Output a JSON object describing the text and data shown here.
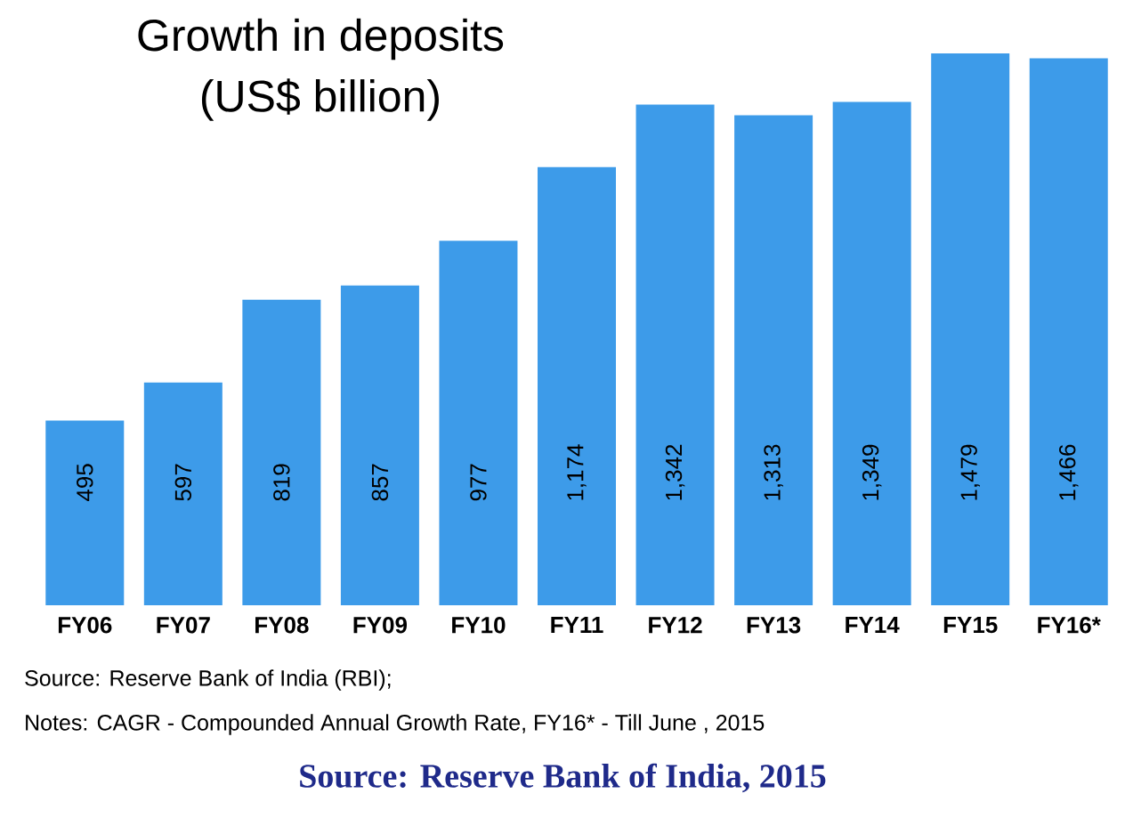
{
  "chart_data": {
    "type": "bar",
    "title": "Growth in deposits",
    "subtitle": "(US$ billion)",
    "categories": [
      "FY06",
      "FY07",
      "FY08",
      "FY09",
      "FY10",
      "FY11",
      "FY12",
      "FY13",
      "FY14",
      "FY15",
      "FY16*"
    ],
    "values": [
      495,
      597,
      819,
      857,
      977,
      1174,
      1342,
      1313,
      1349,
      1479,
      1466
    ],
    "value_labels": [
      "495",
      "597",
      "819",
      "857",
      "977",
      "1,174",
      "1,342",
      "1,313",
      "1,349",
      "1,479",
      "1,466"
    ],
    "color": "#3d9be9",
    "annotations": [
      "Source: Reserve Bank of India (RBI);",
      "Notes: CAGR - Compounded Annual Growth Rate, FY16* - Till June , 2015",
      "Source: Reserve Bank of India, 2015"
    ]
  }
}
